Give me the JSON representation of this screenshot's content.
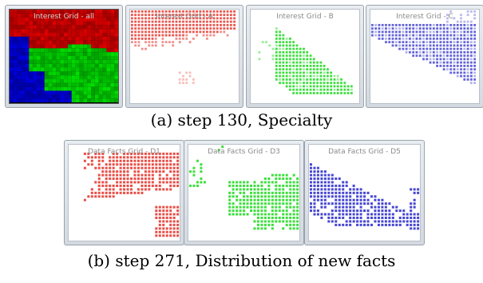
{
  "row_a": {
    "caption": "(a) step 130, Specialty",
    "panels": [
      {
        "title": "Interest Grid - all"
      },
      {
        "title": "Interest Grid - A"
      },
      {
        "title": "Interest Grid - B"
      },
      {
        "title": "Interest Grid - C"
      }
    ]
  },
  "row_b": {
    "caption": "(b) step 271, Distribution of new facts",
    "panels": [
      {
        "title": "Data Facts Grid - D1"
      },
      {
        "title": "Data Facts Grid - D3"
      },
      {
        "title": "Data Facts Grid - D5"
      }
    ]
  },
  "colors": {
    "red": "#e8453c",
    "green": "#33dd33",
    "blue": "#3c3cd0",
    "all_red": "#e00000",
    "all_green": "#00e000",
    "all_blue": "#0000e0"
  }
}
